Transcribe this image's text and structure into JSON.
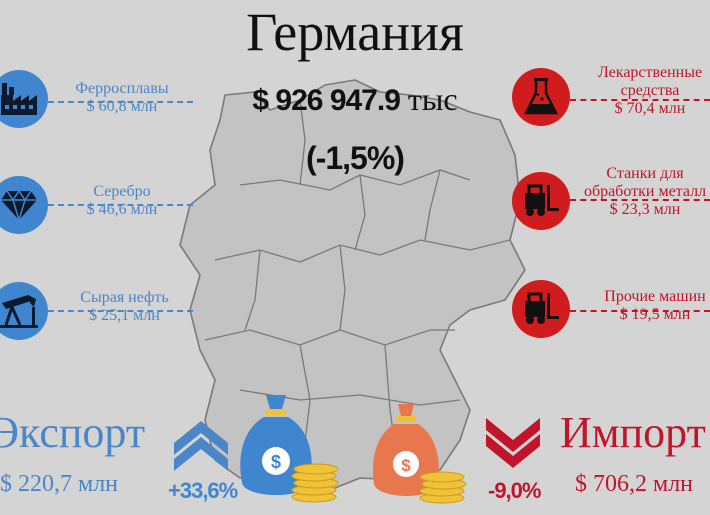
{
  "header": {
    "title": "Германия",
    "total_value": "$ 926 947.9",
    "total_unit": "тыс",
    "change": "(-1,5%)"
  },
  "exports": {
    "label": "Экспорт",
    "value": "$ 220,7 млн",
    "change": "+33,6%",
    "items": [
      {
        "name": "Ферросплавы",
        "value": "$ 60,8 млн",
        "icon": "factory-icon"
      },
      {
        "name": "Серебро",
        "value": "$ 46,6 млн",
        "icon": "diamond-icon"
      },
      {
        "name": "Сырая нефть",
        "value": "$ 25,1 млн",
        "icon": "oil-pump-icon"
      }
    ]
  },
  "imports": {
    "label": "Импорт",
    "value": "$ 706,2 млн",
    "change": "-9,0%",
    "items": [
      {
        "name_line1": "Лекарственные",
        "name_line2": "средства",
        "value": "$ 70,4 млн",
        "icon": "flask-icon"
      },
      {
        "name_line1": "Станки для",
        "name_line2": "обработки металл",
        "value": "$ 23,3 млн",
        "icon": "forklift-icon"
      },
      {
        "name_line1": "Прочие машин",
        "name_line2": "",
        "value": "$ 19,5 млн",
        "icon": "forklift-icon"
      }
    ]
  },
  "colors": {
    "background": "#d4d4d4",
    "export_blue": "#4a86c8",
    "import_red": "#c0152b",
    "money_bag_blue": "#3f86cf",
    "money_bag_orange": "#e9774e",
    "coins": "#f0c23a"
  }
}
